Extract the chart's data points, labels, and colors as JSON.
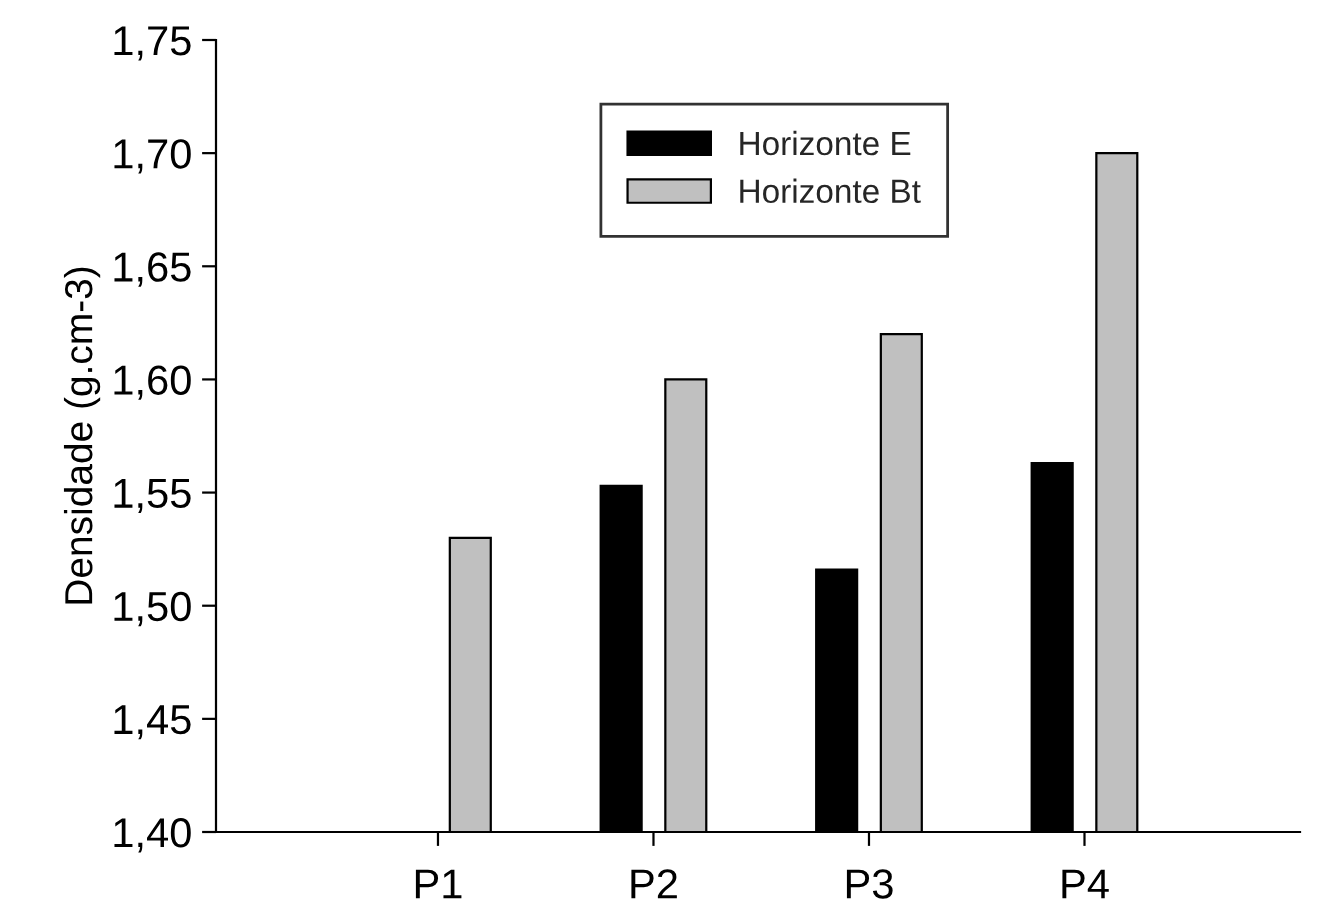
{
  "chart_data": {
    "type": "bar",
    "ylabel": "Densidade (g.cm-3)",
    "categories": [
      "P1",
      "P2",
      "P3",
      "P4"
    ],
    "series": [
      {
        "name": "Horizonte E",
        "color": "#000000",
        "values": [
          null,
          1.553,
          1.516,
          1.563
        ]
      },
      {
        "name": "Horizonte Bt",
        "color": "#c0c0c0",
        "values": [
          1.53,
          1.6,
          1.62,
          1.7
        ]
      }
    ],
    "ylim": [
      1.4,
      1.75
    ],
    "yticks": [
      {
        "value": 1.4,
        "label": "1,40"
      },
      {
        "value": 1.45,
        "label": "1,45"
      },
      {
        "value": 1.5,
        "label": "1,50"
      },
      {
        "value": 1.55,
        "label": "1,55"
      },
      {
        "value": 1.6,
        "label": "1,60"
      },
      {
        "value": 1.65,
        "label": "1,65"
      },
      {
        "value": 1.7,
        "label": "1,70"
      },
      {
        "value": 1.75,
        "label": "1,75"
      }
    ],
    "legend": "top",
    "grid": false
  }
}
